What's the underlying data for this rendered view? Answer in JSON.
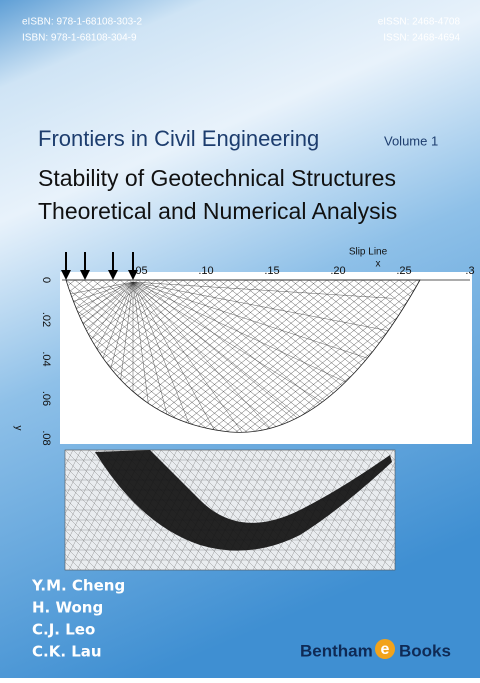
{
  "header": {
    "eisbn": "eISBN: 978-1-68108-303-2",
    "isbn": "ISBN: 978-1-68108-304-9",
    "eissn": "eISSN: 2468-4708",
    "issn": "ISSN: 2468-4694"
  },
  "series": {
    "name": "Frontiers in Civil Engineering",
    "volume": "Volume 1"
  },
  "title": [
    "Stability of Geotechnical Structures",
    "Theoretical and Numerical Analysis"
  ],
  "figure": {
    "label": "Slip Line",
    "x_label": "x",
    "y_label": "y",
    "x_ticks": [
      ".05",
      ".10",
      ".15",
      ".20",
      ".25",
      ".3"
    ],
    "y_ticks": [
      "0",
      ".02",
      ".04",
      ".06",
      ".08"
    ]
  },
  "authors": [
    "Y.M. Cheng",
    "H. Wong",
    "C.J. Leo",
    "C.K. Lau"
  ],
  "publisher": {
    "name": "Bentham",
    "e": "e",
    "imprint": "Books"
  }
}
